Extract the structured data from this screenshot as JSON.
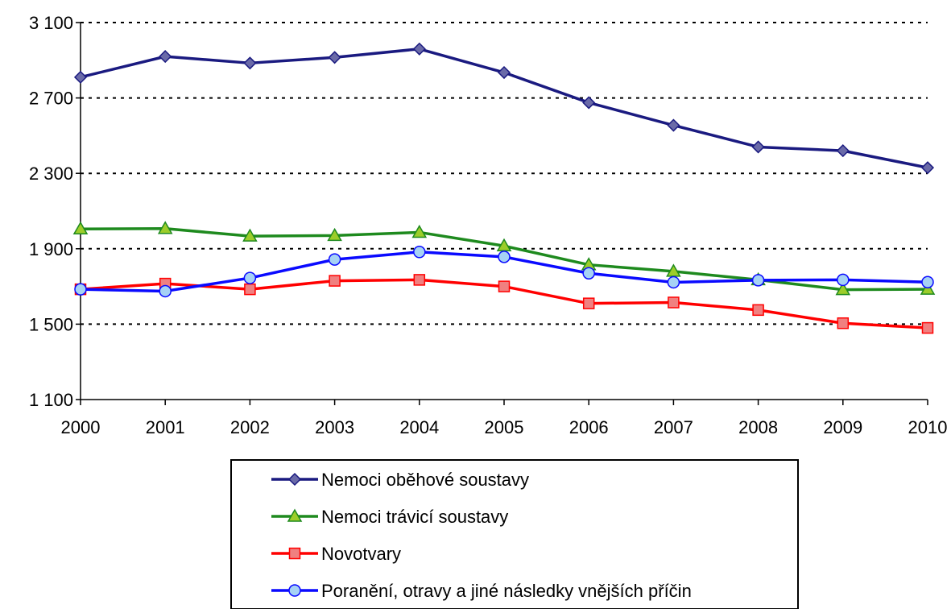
{
  "chart_data": {
    "type": "line",
    "title": "",
    "xlabel": "",
    "ylabel": "",
    "x": [
      "2000",
      "2001",
      "2002",
      "2003",
      "2004",
      "2005",
      "2006",
      "2007",
      "2008",
      "2009",
      "2010"
    ],
    "ylim": [
      1100,
      3100
    ],
    "yticks": [
      1100,
      1500,
      1900,
      2300,
      2700,
      3100
    ],
    "ytick_labels": [
      "1 100",
      "1 500",
      "1 900",
      "2 300",
      "2 700",
      "3 100"
    ],
    "grid": "horizontal dashed",
    "legend_position": "bottom",
    "series": [
      {
        "name": "Nemoci oběhové soustavy",
        "color": "#1a1a80",
        "marker": "diamond",
        "marker_fill": "#6a6aa8",
        "values": [
          2810,
          2920,
          2885,
          2915,
          2960,
          2835,
          2675,
          2555,
          2440,
          2420,
          2330
        ]
      },
      {
        "name": "Nemoci trávicí soustavy",
        "color": "#1e8a1e",
        "marker": "triangle",
        "marker_fill": "#9ccd2a",
        "values": [
          2005,
          2007,
          1967,
          1970,
          1987,
          1915,
          1815,
          1780,
          1735,
          1683,
          1685
        ]
      },
      {
        "name": "Novotvary",
        "color": "#ff0000",
        "marker": "square",
        "marker_fill": "#f08080",
        "values": [
          1685,
          1715,
          1685,
          1730,
          1735,
          1700,
          1610,
          1615,
          1575,
          1505,
          1480
        ]
      },
      {
        "name": "Poranění, otravy a jiné následky vnějších příčin",
        "color": "#0a0aff",
        "marker": "circle",
        "marker_fill": "#a6d2f5",
        "values": [
          1685,
          1675,
          1745,
          1843,
          1883,
          1857,
          1770,
          1722,
          1733,
          1735,
          1723
        ]
      }
    ]
  }
}
